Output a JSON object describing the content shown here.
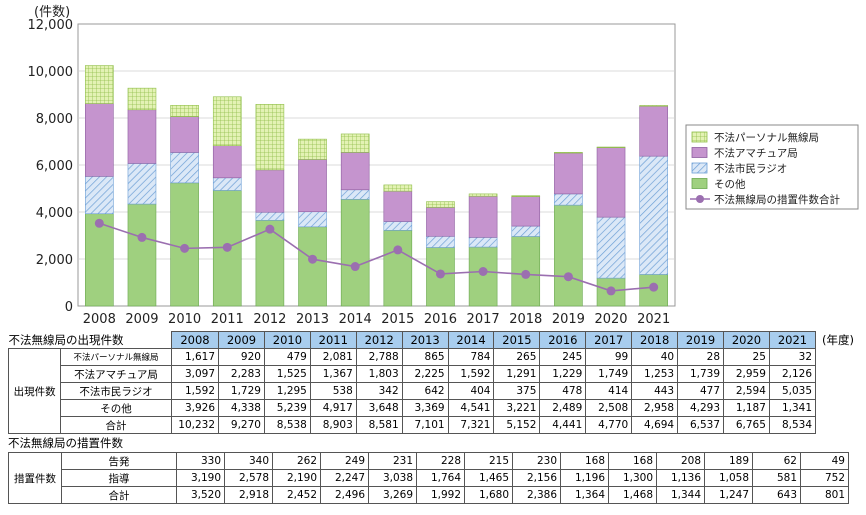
{
  "chart_data": {
    "type": "bar",
    "stacked": true,
    "unit_label": "(件数)",
    "ylim": [
      0,
      12000
    ],
    "y_ticks": [
      "0",
      "2,000",
      "4,000",
      "6,000",
      "8,000",
      "10,000",
      "12,000"
    ],
    "categories": [
      "2008",
      "2009",
      "2010",
      "2011",
      "2012",
      "2013",
      "2014",
      "2015",
      "2016",
      "2017",
      "2018",
      "2019",
      "2020",
      "2021"
    ],
    "series": [
      {
        "name": "その他",
        "color": "#9fd07f",
        "values": [
          3926,
          4338,
          5239,
          4917,
          3648,
          3369,
          4541,
          3221,
          2489,
          2508,
          2958,
          4293,
          1187,
          1341
        ]
      },
      {
        "name": "不法市民ラジオ",
        "color": "#b9d4f2",
        "values": [
          1592,
          1729,
          1295,
          538,
          342,
          642,
          404,
          375,
          478,
          414,
          443,
          477,
          2594,
          5035
        ]
      },
      {
        "name": "不法アマチュア局",
        "color": "#c594ce",
        "values": [
          3097,
          2283,
          1525,
          1367,
          1803,
          2225,
          1592,
          1291,
          1229,
          1749,
          1253,
          1739,
          2959,
          2126
        ]
      },
      {
        "name": "不法パーソナル無線局",
        "color": "#e3f2b4",
        "values": [
          1617,
          920,
          479,
          2081,
          2788,
          865,
          784,
          265,
          245,
          99,
          40,
          28,
          25,
          32
        ]
      }
    ],
    "line": {
      "name": "不法無線局の措置件数合計",
      "color": "#9b6fb0",
      "values": [
        3520,
        2918,
        2452,
        2496,
        3269,
        1992,
        1680,
        2386,
        1364,
        1468,
        1344,
        1247,
        643,
        801
      ]
    },
    "legend": {
      "position": "right",
      "items": [
        "不法パーソナル無線局",
        "不法アマチュア局",
        "不法市民ラジオ",
        "その他",
        "不法無線局の措置件数合計"
      ]
    }
  },
  "table": {
    "caption1": "不法無線局の出現件数",
    "caption2": "不法無線局の措置件数",
    "unit": "(年度)",
    "years": [
      "2008",
      "2009",
      "2010",
      "2011",
      "2012",
      "2013",
      "2014",
      "2015",
      "2016",
      "2017",
      "2018",
      "2019",
      "2020",
      "2021"
    ],
    "appearance": {
      "group": "出現件数",
      "rows": [
        {
          "label": "不法パーソナル無線局",
          "values": [
            "1,617",
            "920",
            "479",
            "2,081",
            "2,788",
            "865",
            "784",
            "265",
            "245",
            "99",
            "40",
            "28",
            "25",
            "32"
          ]
        },
        {
          "label": "不法アマチュア局",
          "values": [
            "3,097",
            "2,283",
            "1,525",
            "1,367",
            "1,803",
            "2,225",
            "1,592",
            "1,291",
            "1,229",
            "1,749",
            "1,253",
            "1,739",
            "2,959",
            "2,126"
          ]
        },
        {
          "label": "不法市民ラジオ",
          "values": [
            "1,592",
            "1,729",
            "1,295",
            "538",
            "342",
            "642",
            "404",
            "375",
            "478",
            "414",
            "443",
            "477",
            "2,594",
            "5,035"
          ]
        },
        {
          "label": "その他",
          "values": [
            "3,926",
            "4,338",
            "5,239",
            "4,917",
            "3,648",
            "3,369",
            "4,541",
            "3,221",
            "2,489",
            "2,508",
            "2,958",
            "4,293",
            "1,187",
            "1,341"
          ]
        }
      ],
      "total_label": "合計",
      "totals": [
        "10,232",
        "9,270",
        "8,538",
        "8,903",
        "8,581",
        "7,101",
        "7,321",
        "5,152",
        "4,441",
        "4,770",
        "4,694",
        "6,537",
        "6,765",
        "8,534"
      ]
    },
    "measures": {
      "group": "措置件数",
      "rows": [
        {
          "label": "告発",
          "values": [
            "330",
            "340",
            "262",
            "249",
            "231",
            "228",
            "215",
            "230",
            "168",
            "168",
            "208",
            "189",
            "62",
            "49"
          ]
        },
        {
          "label": "指導",
          "values": [
            "3,190",
            "2,578",
            "2,190",
            "2,247",
            "3,038",
            "1,764",
            "1,465",
            "2,156",
            "1,196",
            "1,300",
            "1,136",
            "1,058",
            "581",
            "752"
          ]
        }
      ],
      "total_label": "合計",
      "totals": [
        "3,520",
        "2,918",
        "2,452",
        "2,496",
        "3,269",
        "1,992",
        "1,680",
        "2,386",
        "1,364",
        "1,468",
        "1,344",
        "1,247",
        "643",
        "801"
      ]
    }
  }
}
